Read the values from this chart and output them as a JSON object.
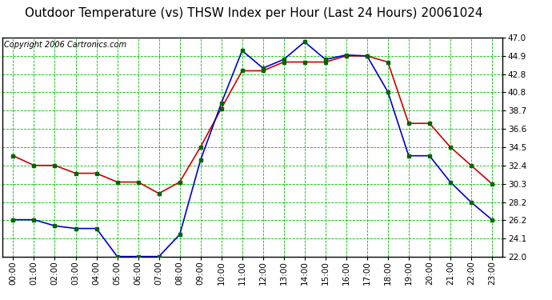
{
  "title": "Outdoor Temperature (vs) THSW Index per Hour (Last 24 Hours) 20061024",
  "copyright_text": "Copyright 2006 Cartronics.com",
  "hours": [
    "00:00",
    "01:00",
    "02:00",
    "03:00",
    "04:00",
    "05:00",
    "06:00",
    "07:00",
    "08:00",
    "09:00",
    "10:00",
    "11:00",
    "12:00",
    "13:00",
    "14:00",
    "15:00",
    "16:00",
    "17:00",
    "18:00",
    "19:00",
    "20:00",
    "21:00",
    "22:00",
    "23:00"
  ],
  "temp": [
    33.5,
    32.4,
    32.4,
    31.5,
    31.5,
    30.5,
    30.5,
    29.2,
    30.5,
    34.5,
    38.9,
    43.2,
    43.2,
    44.2,
    44.2,
    44.2,
    44.9,
    44.9,
    44.2,
    37.2,
    37.2,
    34.5,
    32.4,
    30.3
  ],
  "thsw": [
    26.2,
    26.2,
    25.5,
    25.2,
    25.2,
    22.0,
    22.0,
    22.0,
    24.5,
    33.0,
    39.5,
    45.5,
    43.5,
    44.5,
    46.5,
    44.5,
    45.0,
    44.9,
    40.8,
    33.5,
    33.5,
    30.5,
    28.2,
    26.2
  ],
  "y_ticks": [
    22.0,
    24.1,
    26.2,
    28.2,
    30.3,
    32.4,
    34.5,
    36.6,
    38.7,
    40.8,
    42.8,
    44.9,
    47.0
  ],
  "y_min": 22.0,
  "y_max": 47.0,
  "temp_color": "#cc0000",
  "thsw_color": "#0000cc",
  "marker_color": "#006600",
  "bg_color": "#ffffff",
  "grid_color": "#00bb00",
  "title_fontsize": 11,
  "copyright_fontsize": 7,
  "tick_fontsize": 7.5,
  "line_width": 1.2,
  "marker_size": 3.0
}
